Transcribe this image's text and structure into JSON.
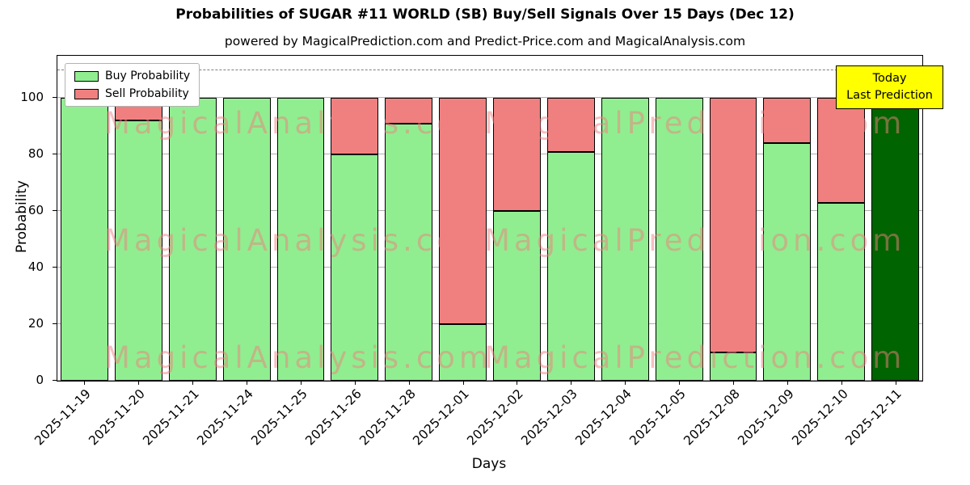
{
  "title": "Probabilities of SUGAR #11 WORLD (SB) Buy/Sell Signals Over 15 Days (Dec 12)",
  "subtitle": "powered by MagicalPrediction.com and Predict-Price.com and MagicalAnalysis.com",
  "axes": {
    "xlabel": "Days",
    "ylabel": "Probability",
    "yticks": [
      0,
      20,
      40,
      60,
      80,
      100
    ]
  },
  "legend": {
    "buy_label": "Buy Probability",
    "sell_label": "Sell Probability"
  },
  "annotation": {
    "line1": "Today",
    "line2": "Last Prediction"
  },
  "watermarks": {
    "left": "MagicalAnalysis.com",
    "right": "MagicalPrediction.com"
  },
  "colors": {
    "buy": "#90EE90",
    "sell": "#F08080",
    "last_bar": "#006400",
    "bar_edge": "#000000",
    "annotation_bg": "#FFFF00",
    "dashed_line": "#7F7F7F",
    "grid": "#B0B0B0",
    "watermark": "#F08080"
  },
  "chart_data": {
    "type": "bar",
    "stacked": true,
    "title": "Probabilities of SUGAR #11 WORLD (SB) Buy/Sell Signals Over 15 Days (Dec 12)",
    "xlabel": "Days",
    "ylabel": "Probability",
    "ylim": [
      0,
      115
    ],
    "dashed_line_y": 110,
    "grid": true,
    "legend_position": "upper-left",
    "last_bar_color": "#006400",
    "categories": [
      "2025-11-19",
      "2025-11-20",
      "2025-11-21",
      "2025-11-24",
      "2025-11-25",
      "2025-11-26",
      "2025-11-28",
      "2025-12-01",
      "2025-12-02",
      "2025-12-03",
      "2025-12-04",
      "2025-12-05",
      "2025-12-08",
      "2025-12-09",
      "2025-12-10",
      "2025-12-11"
    ],
    "series": [
      {
        "name": "Buy Probability",
        "color": "#90EE90",
        "values": [
          100,
          92,
          100,
          100,
          100,
          80,
          91,
          20,
          60,
          81,
          100,
          100,
          10,
          84,
          63,
          100
        ]
      },
      {
        "name": "Sell Probability",
        "color": "#F08080",
        "values": [
          0,
          8,
          0,
          0,
          0,
          20,
          9,
          80,
          40,
          19,
          0,
          0,
          90,
          16,
          37,
          0
        ]
      }
    ]
  }
}
